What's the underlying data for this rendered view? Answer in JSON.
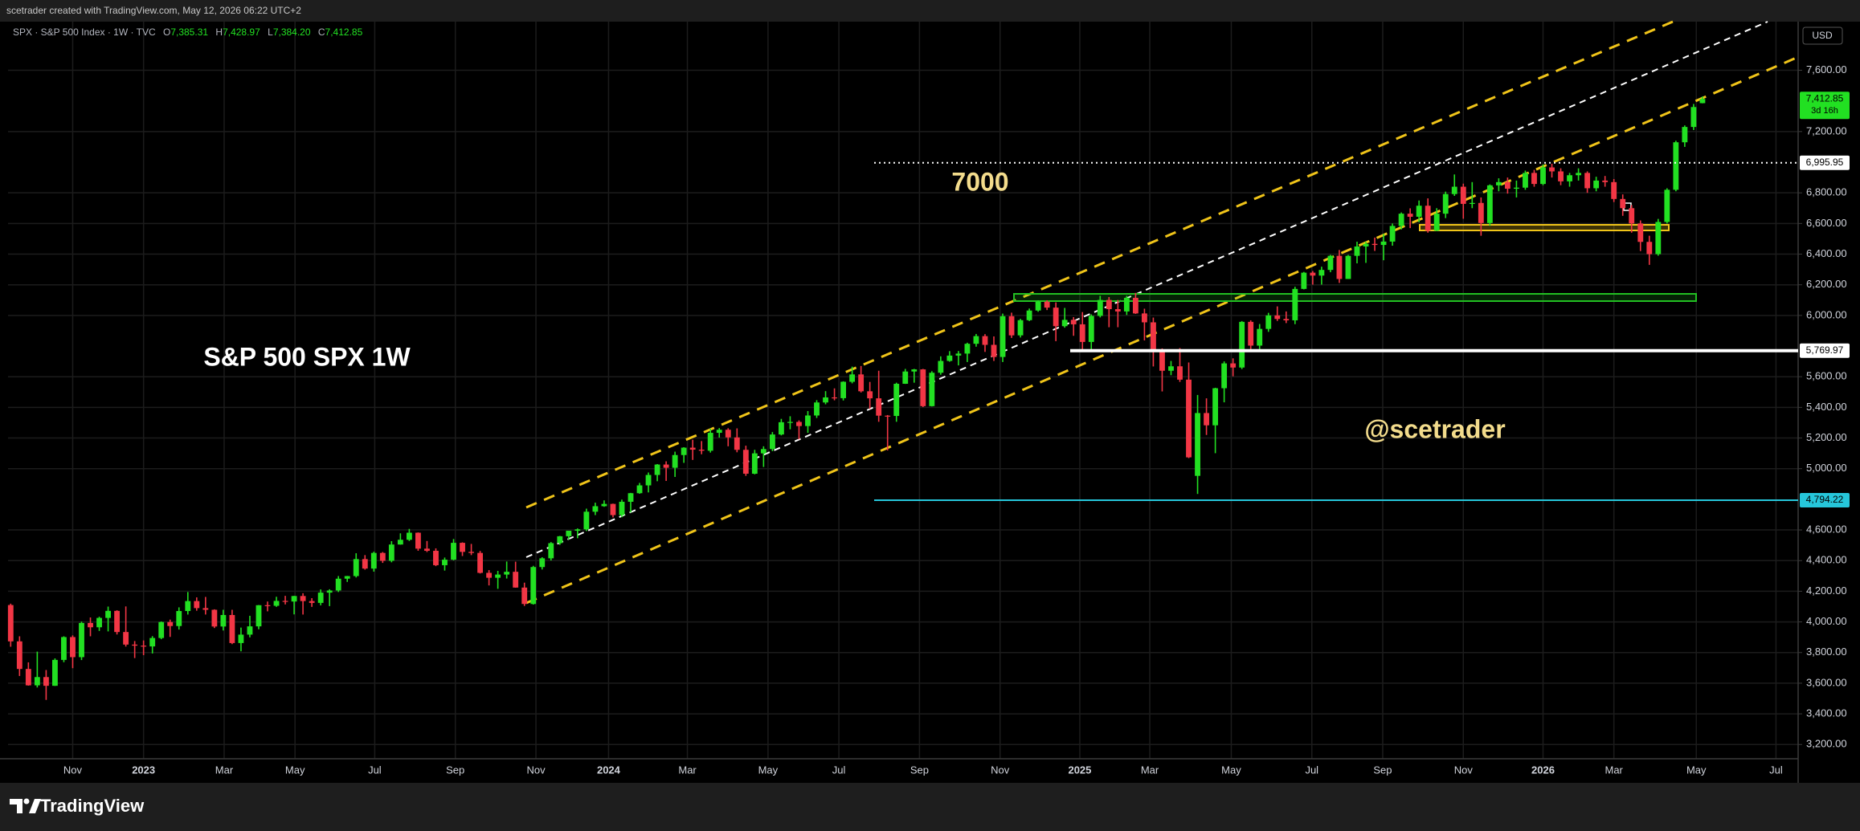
{
  "header": "scetrader created with TradingView.com, May 12, 2026 06:22 UTC+2",
  "footer_brand": "TradingView",
  "chart_data": {
    "type": "candlestick",
    "symbol": "SPX · S&P 500 Index · 1W · TVC",
    "ohlc_legend": [
      {
        "key": "O",
        "label": "7,385.31"
      },
      {
        "key": "H",
        "label": "7,428.97"
      },
      {
        "key": "L",
        "label": "7,384.20"
      },
      {
        "key": "C",
        "label": "7,412.85"
      }
    ],
    "currency": "USD",
    "up_color": "#22e022",
    "down_color": "#f23645",
    "candles": [
      [
        4110,
        4119,
        3838,
        3873
      ],
      [
        3873,
        3906,
        3647,
        3693
      ],
      [
        3693,
        3736,
        3584,
        3586
      ],
      [
        3586,
        3806,
        3572,
        3640
      ],
      [
        3640,
        3686,
        3491,
        3583
      ],
      [
        3583,
        3762,
        3582,
        3752
      ],
      [
        3752,
        3906,
        3737,
        3901
      ],
      [
        3901,
        3912,
        3698,
        3770
      ],
      [
        3770,
        4002,
        3751,
        3993
      ],
      [
        3993,
        4029,
        3906,
        3965
      ],
      [
        3965,
        4034,
        3941,
        4026
      ],
      [
        4026,
        4100,
        3938,
        4072
      ],
      [
        4072,
        4076,
        3918,
        3934
      ],
      [
        3934,
        4101,
        3839,
        3852
      ],
      [
        3852,
        3875,
        3764,
        3845
      ],
      [
        3845,
        3879,
        3783,
        3840
      ],
      [
        3840,
        3907,
        3794,
        3895
      ],
      [
        3895,
        4003,
        3887,
        3999
      ],
      [
        3999,
        4015,
        3902,
        3973
      ],
      [
        3973,
        4095,
        3950,
        4071
      ],
      [
        4071,
        4195,
        4048,
        4136
      ],
      [
        4136,
        4160,
        4073,
        4090
      ],
      [
        4090,
        4163,
        4048,
        4079
      ],
      [
        4079,
        4082,
        3960,
        3970
      ],
      [
        3970,
        4079,
        3944,
        4045
      ],
      [
        4045,
        4079,
        3855,
        3862
      ],
      [
        3862,
        3963,
        3808,
        3917
      ],
      [
        3917,
        4040,
        3899,
        3971
      ],
      [
        3971,
        4110,
        3952,
        4109
      ],
      [
        4109,
        4133,
        4069,
        4105
      ],
      [
        4105,
        4164,
        4098,
        4137
      ],
      [
        4137,
        4170,
        4114,
        4133
      ],
      [
        4133,
        4170,
        4049,
        4169
      ],
      [
        4169,
        4187,
        4048,
        4136
      ],
      [
        4136,
        4155,
        4098,
        4124
      ],
      [
        4124,
        4212,
        4108,
        4191
      ],
      [
        4191,
        4213,
        4103,
        4205
      ],
      [
        4205,
        4299,
        4195,
        4282
      ],
      [
        4282,
        4300,
        4261,
        4299
      ],
      [
        4299,
        4448,
        4290,
        4410
      ],
      [
        4410,
        4436,
        4341,
        4348
      ],
      [
        4348,
        4458,
        4328,
        4450
      ],
      [
        4450,
        4456,
        4385,
        4399
      ],
      [
        4399,
        4527,
        4389,
        4505
      ],
      [
        4505,
        4578,
        4504,
        4536
      ],
      [
        4536,
        4607,
        4528,
        4582
      ],
      [
        4582,
        4584,
        4464,
        4478
      ],
      [
        4478,
        4528,
        4456,
        4464
      ],
      [
        4464,
        4480,
        4364,
        4370
      ],
      [
        4370,
        4420,
        4335,
        4406
      ],
      [
        4406,
        4541,
        4402,
        4516
      ],
      [
        4516,
        4519,
        4430,
        4457
      ],
      [
        4457,
        4509,
        4436,
        4450
      ],
      [
        4450,
        4463,
        4316,
        4320
      ],
      [
        4320,
        4338,
        4238,
        4288
      ],
      [
        4288,
        4333,
        4216,
        4309
      ],
      [
        4309,
        4394,
        4283,
        4327
      ],
      [
        4327,
        4393,
        4223,
        4224
      ],
      [
        4224,
        4256,
        4104,
        4117
      ],
      [
        4117,
        4366,
        4113,
        4358
      ],
      [
        4358,
        4422,
        4342,
        4415
      ],
      [
        4415,
        4521,
        4401,
        4514
      ],
      [
        4514,
        4561,
        4503,
        4559
      ],
      [
        4559,
        4595,
        4537,
        4595
      ],
      [
        4595,
        4610,
        4546,
        4604
      ],
      [
        4604,
        4739,
        4593,
        4719
      ],
      [
        4719,
        4778,
        4697,
        4755
      ],
      [
        4755,
        4793,
        4751,
        4770
      ],
      [
        4770,
        4772,
        4682,
        4697
      ],
      [
        4697,
        4798,
        4683,
        4784
      ],
      [
        4784,
        4842,
        4714,
        4840
      ],
      [
        4840,
        4907,
        4836,
        4891
      ],
      [
        4891,
        4975,
        4845,
        4959
      ],
      [
        4959,
        5030,
        4918,
        5027
      ],
      [
        5027,
        5048,
        4920,
        5006
      ],
      [
        5006,
        5111,
        4946,
        5089
      ],
      [
        5089,
        5140,
        5038,
        5137
      ],
      [
        5137,
        5189,
        5057,
        5124
      ],
      [
        5124,
        5180,
        5094,
        5117
      ],
      [
        5117,
        5261,
        5105,
        5234
      ],
      [
        5234,
        5265,
        5203,
        5254
      ],
      [
        5254,
        5264,
        5146,
        5204
      ],
      [
        5204,
        5263,
        5107,
        5123
      ],
      [
        5123,
        5150,
        4953,
        4967
      ],
      [
        4967,
        5123,
        4963,
        5100
      ],
      [
        5100,
        5146,
        5011,
        5128
      ],
      [
        5128,
        5239,
        5114,
        5223
      ],
      [
        5223,
        5325,
        5217,
        5303
      ],
      [
        5303,
        5342,
        5257,
        5305
      ],
      [
        5305,
        5315,
        5191,
        5278
      ],
      [
        5278,
        5376,
        5234,
        5347
      ],
      [
        5347,
        5447,
        5331,
        5432
      ],
      [
        5432,
        5506,
        5420,
        5465
      ],
      [
        5465,
        5524,
        5446,
        5460
      ],
      [
        5460,
        5570,
        5445,
        5567
      ],
      [
        5567,
        5666,
        5557,
        5615
      ],
      [
        5615,
        5670,
        5497,
        5505
      ],
      [
        5505,
        5566,
        5390,
        5459
      ],
      [
        5459,
        5639,
        5306,
        5346
      ],
      [
        5346,
        5350,
        5119,
        5344
      ],
      [
        5344,
        5561,
        5306,
        5554
      ],
      [
        5554,
        5651,
        5553,
        5634
      ],
      [
        5634,
        5651,
        5561,
        5648
      ],
      [
        5648,
        5651,
        5402,
        5408
      ],
      [
        5408,
        5636,
        5406,
        5626
      ],
      [
        5626,
        5733,
        5613,
        5703
      ],
      [
        5703,
        5767,
        5698,
        5738
      ],
      [
        5738,
        5768,
        5674,
        5751
      ],
      [
        5751,
        5822,
        5696,
        5815
      ],
      [
        5815,
        5879,
        5796,
        5865
      ],
      [
        5865,
        5878,
        5762,
        5808
      ],
      [
        5808,
        5863,
        5703,
        5729
      ],
      [
        5729,
        6012,
        5696,
        5995
      ],
      [
        5995,
        6018,
        5853,
        5870
      ],
      [
        5870,
        5978,
        5856,
        5969
      ],
      [
        5969,
        6045,
        5963,
        6032
      ],
      [
        6032,
        6099,
        6024,
        6090
      ],
      [
        6090,
        6099,
        6035,
        6051
      ],
      [
        6051,
        6085,
        5832,
        5930
      ],
      [
        5930,
        6049,
        5920,
        5971
      ],
      [
        5971,
        5989,
        5867,
        5942
      ],
      [
        5942,
        6022,
        5774,
        5827
      ],
      [
        5827,
        6007,
        5773,
        5997
      ],
      [
        5997,
        6128,
        5987,
        6101
      ],
      [
        6101,
        6120,
        5923,
        6041
      ],
      [
        6041,
        6101,
        5923,
        6026
      ],
      [
        6026,
        6128,
        6003,
        6115
      ],
      [
        6115,
        6147,
        6010,
        6013
      ],
      [
        6013,
        6044,
        5837,
        5955
      ],
      [
        5955,
        5986,
        5667,
        5770
      ],
      [
        5770,
        5785,
        5504,
        5639
      ],
      [
        5639,
        5703,
        5610,
        5668
      ],
      [
        5668,
        5787,
        5566,
        5581
      ],
      [
        5581,
        5693,
        5069,
        5074
      ],
      [
        4953,
        5481,
        4835,
        5363
      ],
      [
        5363,
        5459,
        5220,
        5283
      ],
      [
        5283,
        5528,
        5101,
        5525
      ],
      [
        5525,
        5700,
        5433,
        5687
      ],
      [
        5687,
        5720,
        5603,
        5660
      ],
      [
        5660,
        5963,
        5650,
        5958
      ],
      [
        5958,
        5968,
        5768,
        5803
      ],
      [
        5803,
        5944,
        5768,
        5912
      ],
      [
        5912,
        6017,
        5893,
        6000
      ],
      [
        6000,
        6059,
        5964,
        5977
      ],
      [
        5977,
        6026,
        5950,
        5968
      ],
      [
        5968,
        6187,
        5943,
        6173
      ],
      [
        6173,
        6284,
        6170,
        6279
      ],
      [
        6279,
        6290,
        6201,
        6260
      ],
      [
        6260,
        6318,
        6201,
        6297
      ],
      [
        6297,
        6395,
        6282,
        6389
      ],
      [
        6389,
        6427,
        6212,
        6238
      ],
      [
        6238,
        6395,
        6238,
        6389
      ],
      [
        6389,
        6481,
        6340,
        6450
      ],
      [
        6450,
        6481,
        6343,
        6467
      ],
      [
        6467,
        6508,
        6421,
        6460
      ],
      [
        6460,
        6532,
        6360,
        6482
      ],
      [
        6482,
        6600,
        6455,
        6584
      ],
      [
        6584,
        6672,
        6561,
        6664
      ],
      [
        6664,
        6699,
        6570,
        6644
      ],
      [
        6644,
        6750,
        6608,
        6716
      ],
      [
        6716,
        6764,
        6540,
        6553
      ],
      [
        6553,
        6700,
        6550,
        6664
      ],
      [
        6664,
        6808,
        6635,
        6792
      ],
      [
        6792,
        6920,
        6780,
        6840
      ],
      [
        6840,
        6860,
        6631,
        6728
      ],
      [
        6728,
        6870,
        6700,
        6734
      ],
      [
        6734,
        6770,
        6520,
        6603
      ],
      [
        6603,
        6855,
        6585,
        6849
      ],
      [
        6849,
        6895,
        6810,
        6870
      ],
      [
        6870,
        6900,
        6795,
        6827
      ],
      [
        6827,
        6880,
        6770,
        6834
      ],
      [
        6834,
        6945,
        6820,
        6930
      ],
      [
        6930,
        6950,
        6840,
        6858
      ],
      [
        6858,
        6985,
        6850,
        6966
      ],
      [
        6966,
        6990,
        6900,
        6940
      ],
      [
        6940,
        6960,
        6850,
        6875
      ],
      [
        6875,
        6930,
        6840,
        6915
      ],
      [
        6915,
        6960,
        6880,
        6930
      ],
      [
        6930,
        6940,
        6800,
        6830
      ],
      [
        6830,
        6905,
        6810,
        6880
      ],
      [
        6880,
        6910,
        6840,
        6870
      ],
      [
        6870,
        6890,
        6740,
        6760
      ],
      [
        6760,
        6790,
        6650,
        6700
      ],
      [
        6700,
        6720,
        6540,
        6600
      ],
      [
        6600,
        6620,
        6420,
        6480
      ],
      [
        6480,
        6520,
        6330,
        6400
      ],
      [
        6400,
        6630,
        6390,
        6610
      ],
      [
        6610,
        6830,
        6600,
        6820
      ],
      [
        6820,
        7140,
        6810,
        7130
      ],
      [
        7130,
        7240,
        7100,
        7230
      ],
      [
        7230,
        7380,
        7210,
        7360
      ],
      [
        7385.31,
        7428.97,
        7384.2,
        7412.85
      ]
    ],
    "xlim": [
      -0.3,
      201.8
    ],
    "xticks": [
      {
        "value": 7.0,
        "label": "Nov"
      },
      {
        "value": 15.0,
        "label": "2023"
      },
      {
        "value": 24.1,
        "label": "Mar"
      },
      {
        "value": 32.1,
        "label": "May"
      },
      {
        "value": 41.1,
        "label": "Jul"
      },
      {
        "value": 50.2,
        "label": "Sep"
      },
      {
        "value": 59.3,
        "label": "Nov"
      },
      {
        "value": 67.5,
        "label": "2024"
      },
      {
        "value": 76.4,
        "label": "Mar"
      },
      {
        "value": 85.5,
        "label": "May"
      },
      {
        "value": 93.5,
        "label": "Jul"
      },
      {
        "value": 102.6,
        "label": "Sep"
      },
      {
        "value": 111.7,
        "label": "Nov"
      },
      {
        "value": 120.7,
        "label": "2025"
      },
      {
        "value": 128.6,
        "label": "Mar"
      },
      {
        "value": 137.8,
        "label": "May"
      },
      {
        "value": 146.9,
        "label": "Jul"
      },
      {
        "value": 154.9,
        "label": "Sep"
      },
      {
        "value": 164.0,
        "label": "Nov"
      },
      {
        "value": 173.0,
        "label": "2026"
      },
      {
        "value": 181.0,
        "label": "Mar"
      },
      {
        "value": 190.3,
        "label": "May"
      },
      {
        "value": 199.3,
        "label": "Jul"
      }
    ],
    "ylim": [
      3107,
      7917
    ],
    "yticks": [
      {
        "value": 7600,
        "label": "7,600.00"
      },
      {
        "value": 7200,
        "label": "7,200.00"
      },
      {
        "value": 6800,
        "label": "6,800.00"
      },
      {
        "value": 6600,
        "label": "6,600.00"
      },
      {
        "value": 6400,
        "label": "6,400.00"
      },
      {
        "value": 6200,
        "label": "6,200.00"
      },
      {
        "value": 6000,
        "label": "6,000.00"
      },
      {
        "value": 5600,
        "label": "5,600.00"
      },
      {
        "value": 5400,
        "label": "5,400.00"
      },
      {
        "value": 5200,
        "label": "5,200.00"
      },
      {
        "value": 5000,
        "label": "5,000.00"
      },
      {
        "value": 4600,
        "label": "4,600.00"
      },
      {
        "value": 4400,
        "label": "4,400.00"
      },
      {
        "value": 4200,
        "label": "4,200.00"
      },
      {
        "value": 4000,
        "label": "4,000.00"
      },
      {
        "value": 3800,
        "label": "3,800.00"
      },
      {
        "value": 3600,
        "label": "3,600.00"
      },
      {
        "value": 3400,
        "label": "3,400.00"
      },
      {
        "value": 3200,
        "label": "3,200.00"
      }
    ],
    "grid": true,
    "annotations": [
      {
        "text": "7000",
        "color": "#f3dc8c"
      },
      {
        "text": "S&P 500 SPX 1W",
        "color": "#ffffff"
      },
      {
        "text": "@scetrader",
        "color": "#f3dc8c"
      }
    ],
    "price_lines": [
      {
        "value": 6995.95,
        "label": "6,995.95",
        "color": "#ffffff",
        "style": "dotted"
      },
      {
        "value": 5769.97,
        "label": "5,769.97",
        "color": "#ffffff",
        "style": "solid"
      },
      {
        "value": 4794.22,
        "label": "4,794.22",
        "color": "#26c6da",
        "style": "solid"
      }
    ],
    "last_price_label": "7,412.85",
    "countdown": "3d 16h"
  }
}
